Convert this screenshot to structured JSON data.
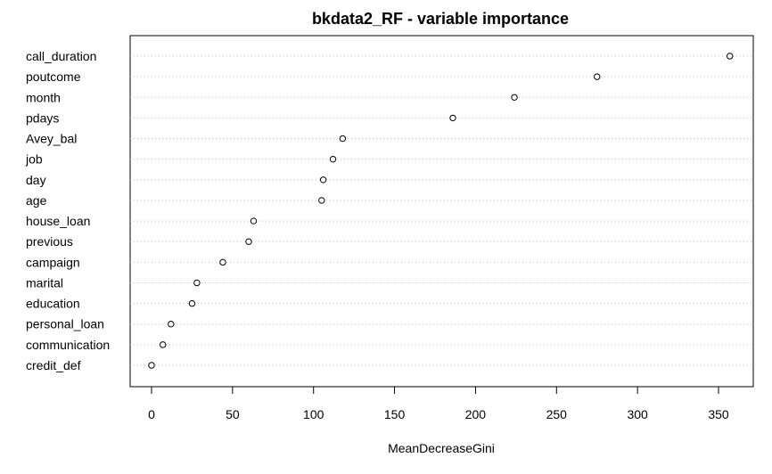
{
  "chart_data": {
    "type": "scatter",
    "title": "bkdata2_RF - variable importance",
    "xlabel": "MeanDecreaseGini",
    "ylabel": "",
    "xlim": [
      0,
      360
    ],
    "x_ticks": [
      0,
      50,
      100,
      150,
      200,
      250,
      300,
      350
    ],
    "grid": "dotted horizontal lines per variable",
    "categories": [
      "call_duration",
      "poutcome",
      "month",
      "pdays",
      "Avey_bal",
      "job",
      "day",
      "age",
      "house_loan",
      "previous",
      "campaign",
      "marital",
      "education",
      "personal_loan",
      "communication",
      "credit_def"
    ],
    "values": [
      357,
      275,
      224,
      186,
      118,
      112,
      106,
      105,
      63,
      60,
      44,
      28,
      25,
      12,
      7,
      0
    ]
  }
}
